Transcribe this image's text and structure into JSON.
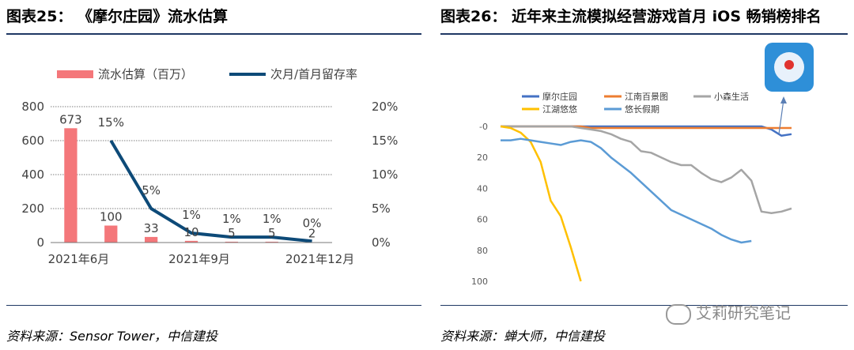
{
  "left": {
    "title": "图表25：  《摩尔庄园》流水估算",
    "source": "资料来源：Sensor Tower，中信建投"
  },
  "right": {
    "title": "图表26：  近年来主流模拟经营游戏首月 iOS 畅销榜排名",
    "source": "资料来源：蝉大师，中信建投"
  },
  "watermark": "艾莉研究笔记",
  "chart_data": [
    {
      "type": "bar+line",
      "categories": [
        "2021年6月",
        "",
        "",
        "2021年9月",
        "",
        "",
        "2021年12月"
      ],
      "x_tick_labels": [
        "2021年6月",
        "2021年9月",
        "2021年12月"
      ],
      "series": [
        {
          "name": "流水估算（百万）",
          "type": "bar",
          "axis": "left",
          "color": "#f4777a",
          "values": [
            673,
            100,
            33,
            10,
            5,
            5,
            2
          ],
          "labels": [
            "673",
            "100",
            "33",
            "10",
            "5",
            "5",
            "2"
          ]
        },
        {
          "name": "次月/首月留存率",
          "type": "line",
          "axis": "right",
          "color": "#0d4a78",
          "values": [
            null,
            15,
            5,
            1.4,
            0.8,
            0.8,
            0.2
          ],
          "labels": [
            "",
            "15%",
            "5%",
            "1%",
            "1%",
            "1%",
            "0%"
          ]
        }
      ],
      "left_axis": {
        "ylim": [
          0,
          800
        ],
        "ticks": [
          "0",
          "200",
          "400",
          "600",
          "800"
        ]
      },
      "right_axis": {
        "ylim": [
          0,
          20
        ],
        "ticks": [
          "0%",
          "5%",
          "10%",
          "15%",
          "20%"
        ]
      },
      "grid": true,
      "legend_position": "top"
    },
    {
      "type": "line",
      "y_inverted": true,
      "ylim": [
        0,
        100
      ],
      "y_ticks": [
        "0",
        "20",
        "40",
        "60",
        "80",
        "100"
      ],
      "x_count": 30,
      "legend_position": "top-left",
      "series": [
        {
          "name": "摩尔庄园",
          "color": "#4472c4",
          "values": [
            0,
            0,
            0,
            0,
            0,
            0,
            0,
            0,
            0,
            0,
            0,
            0,
            0,
            0,
            0,
            0,
            0,
            0,
            0,
            0,
            0,
            0,
            0,
            0,
            0,
            0,
            0,
            2,
            6,
            5
          ]
        },
        {
          "name": "江南百景图",
          "color": "#ed7d31",
          "values": [
            0,
            0,
            0,
            0,
            0,
            0,
            0,
            0,
            0,
            1,
            1,
            1,
            1,
            1,
            1,
            1,
            1,
            1,
            1,
            1,
            1,
            1,
            1,
            1,
            1,
            1,
            1,
            1,
            1,
            1
          ]
        },
        {
          "name": "小森生活",
          "color": "#a5a5a5",
          "values": [
            0,
            0,
            0,
            0,
            0,
            0,
            0,
            0,
            1,
            2,
            3,
            5,
            8,
            10,
            16,
            17,
            20,
            23,
            25,
            25,
            30,
            34,
            36,
            33,
            28,
            35,
            55,
            56,
            55,
            53
          ]
        },
        {
          "name": "江湖悠悠",
          "color": "#ffc000",
          "values": [
            0,
            1,
            4,
            10,
            23,
            48,
            58,
            78,
            100
          ]
        },
        {
          "name": "悠长假期",
          "color": "#5b9bd5",
          "values": [
            9,
            9,
            8,
            9,
            10,
            11,
            12,
            10,
            9,
            10,
            14,
            20,
            25,
            30,
            36,
            42,
            48,
            54,
            57,
            60,
            63,
            66,
            70,
            73,
            75,
            74
          ]
        }
      ]
    }
  ]
}
